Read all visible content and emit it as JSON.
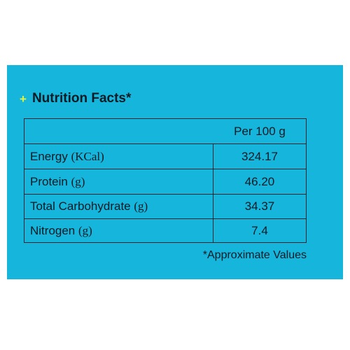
{
  "heading": {
    "title": "Nutrition Facts*"
  },
  "table": {
    "column_header": "Per 100 g",
    "rows": [
      {
        "nutrient": "Energy",
        "unit": "(KCal)",
        "value": "324.17"
      },
      {
        "nutrient": "Protein",
        "unit": "(g)",
        "value": "46.20"
      },
      {
        "nutrient": "Total Carbohydrate",
        "unit": "(g)",
        "value": "34.37"
      },
      {
        "nutrient": "Nitrogen",
        "unit": "(g)",
        "value": "7.4"
      }
    ]
  },
  "footnote": "*Approximate Values",
  "colors": {
    "panel": "#16b6dc",
    "plus_icon": "#e3f542",
    "text": "#0c1a24"
  }
}
